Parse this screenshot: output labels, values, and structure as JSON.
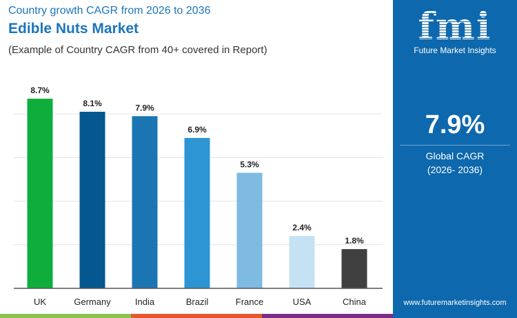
{
  "header": {
    "subtitle": "Country growth CAGR from 2026 to 2036",
    "title": "Edible Nuts Market",
    "note": "(Example of Country CAGR from 40+ covered in Report)"
  },
  "sidebar": {
    "logo_text": "fmi",
    "brand": "Future Market Insights",
    "cagr_value": "7.9%",
    "cagr_label": "Global CAGR",
    "cagr_period": "(2026- 2036)",
    "url": "www.futuremarketinsights.com"
  },
  "colors": {
    "brand_blue": "#0e68ad",
    "strip": [
      "#8bc34a",
      "#e8572a",
      "#7b2d87"
    ]
  },
  "chart_data": {
    "type": "bar",
    "categories": [
      "UK",
      "Germany",
      "India",
      "Brazil",
      "France",
      "USA",
      "China"
    ],
    "values": [
      8.7,
      8.1,
      7.9,
      6.9,
      5.3,
      2.4,
      1.8
    ],
    "labels": [
      "8.7%",
      "8.1%",
      "7.9%",
      "6.9%",
      "5.3%",
      "2.4%",
      "1.8%"
    ],
    "colors": [
      "#0fae3c",
      "#04588f",
      "#1b75b3",
      "#2e95d4",
      "#7fbae2",
      "#c4e2f3",
      "#404040"
    ],
    "ylim": [
      0,
      8.7
    ],
    "grid": true
  }
}
